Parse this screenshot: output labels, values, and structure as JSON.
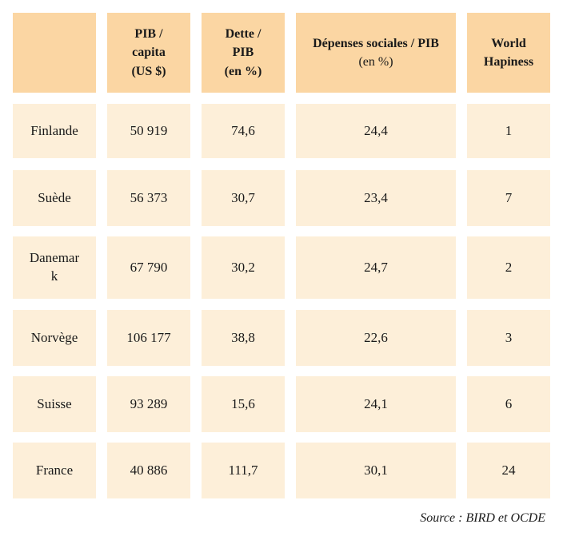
{
  "table": {
    "headers": {
      "corner": "",
      "pib": [
        "PIB /",
        "capita",
        "(US $)"
      ],
      "dette": [
        "Dette /",
        "PIB",
        "(en %)"
      ],
      "depenses": {
        "bold": "Dépenses sociales  / PIB",
        "light": "(en %)"
      },
      "world": [
        "World",
        "Hapiness"
      ]
    },
    "rows": [
      {
        "country": [
          "Finlande"
        ],
        "pib": "50 919",
        "dette": "74,6",
        "depenses": "24,4",
        "world": "1"
      },
      {
        "country": [
          "Suède"
        ],
        "pib": "56 373",
        "dette": "30,7",
        "depenses": "23,4",
        "world": "7"
      },
      {
        "country": [
          "Danemar",
          "k"
        ],
        "pib": "67 790",
        "dette": "30,2",
        "depenses": "24,7",
        "world": "2"
      },
      {
        "country": [
          "Norvège"
        ],
        "pib": "106 177",
        "dette": "38,8",
        "depenses": "22,6",
        "world": "3"
      },
      {
        "country": [
          "Suisse"
        ],
        "pib": "93 289",
        "dette": "15,6",
        "depenses": "24,1",
        "world": "6"
      },
      {
        "country": [
          "France"
        ],
        "pib": "40 886",
        "dette": "111,7",
        "depenses": "30,1",
        "world": "24"
      }
    ]
  },
  "source": "Source : BIRD et OCDE"
}
